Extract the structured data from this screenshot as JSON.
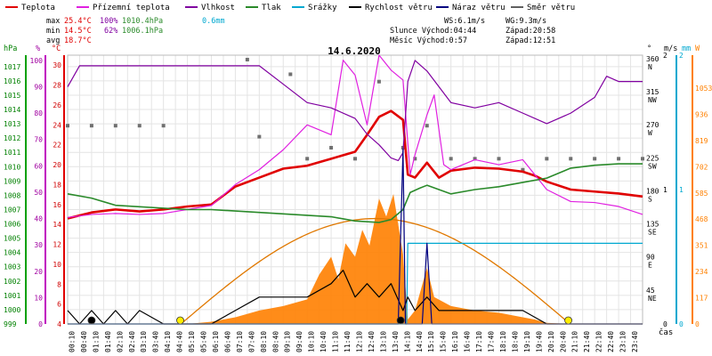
{
  "chart_data": {
    "type": "line",
    "title": "14.6.2020",
    "xlabel": "čas",
    "x_ticks": [
      "00:10",
      "00:40",
      "01:10",
      "01:40",
      "02:10",
      "02:40",
      "03:10",
      "03:40",
      "04:10",
      "04:40",
      "05:10",
      "05:40",
      "06:10",
      "06:40",
      "07:10",
      "07:40",
      "08:10",
      "08:40",
      "09:10",
      "09:40",
      "10:10",
      "10:40",
      "11:10",
      "11:40",
      "12:10",
      "12:40",
      "13:10",
      "13:40",
      "14:10",
      "14:40",
      "15:10",
      "15:40",
      "16:10",
      "16:40",
      "17:10",
      "17:40",
      "18:10",
      "18:40",
      "19:10",
      "19:40",
      "20:10",
      "20:40",
      "21:10",
      "21:40",
      "22:10",
      "22:40",
      "23:10",
      "23:40"
    ],
    "axes": {
      "hpa": {
        "label": "hPa",
        "color": "#008000",
        "ticks": [
          999,
          1000,
          1001,
          1002,
          1003,
          1004,
          1005,
          1006,
          1007,
          1008,
          1009,
          1010,
          1011,
          1012,
          1013,
          1014,
          1015,
          1016,
          1017
        ]
      },
      "pct": {
        "label": "%",
        "color": "#a000a0",
        "ticks": [
          0,
          10,
          20,
          30,
          40,
          50,
          60,
          70,
          80,
          90,
          100
        ]
      },
      "degc": {
        "label": "°C",
        "color": "#d00000",
        "ticks": [
          4,
          6,
          8,
          10,
          12,
          14,
          16,
          18,
          20,
          22,
          24,
          26,
          28,
          30
        ]
      },
      "deg": {
        "label": "°",
        "ticks": [
          {
            "v": "360",
            "d": "N"
          },
          {
            "v": "315",
            "d": "NW"
          },
          {
            "v": "270",
            "d": "W"
          },
          {
            "v": "225",
            "d": "SW"
          },
          {
            "v": "180",
            "d": "S"
          },
          {
            "v": "135",
            "d": "SE"
          },
          {
            "v": "90",
            "d": "E"
          },
          {
            "v": "45",
            "d": "NE"
          }
        ]
      },
      "ms": {
        "label": "m/s",
        "ticks": [
          0,
          1,
          2
        ]
      },
      "mm": {
        "label": "mm",
        "color": "#00a0c0",
        "ticks": [
          0,
          1,
          2
        ]
      },
      "w": {
        "label": "W",
        "color": "#ff8000",
        "ticks": [
          0,
          117,
          234,
          351,
          468,
          585,
          702,
          819,
          936,
          1053
        ]
      }
    },
    "legend": [
      {
        "name": "Teplota",
        "color": "#e00000"
      },
      {
        "name": "Přízemní teplota",
        "color": "#e020e0"
      },
      {
        "name": "Vlhkost",
        "color": "#8000a0"
      },
      {
        "name": "Tlak",
        "color": "#2a8a2a"
      },
      {
        "name": "Srážky",
        "color": "#00a8d0"
      },
      {
        "name": "Rychlost větru",
        "color": "#000000"
      },
      {
        "name": "Náraz větru",
        "color": "#000080"
      },
      {
        "name": "Směr větru",
        "color": "#606060"
      }
    ],
    "stats": {
      "max": {
        "label": "max",
        "temp": "25.4°C",
        "hum": "100%",
        "press": "1010.4hPa",
        "rain": "0.6mm"
      },
      "min": {
        "label": "min",
        "temp": "14.5°C",
        "hum": "62%",
        "press": "1006.1hPa"
      },
      "avg": {
        "label": "avg",
        "temp": "18.7°C"
      },
      "ws": "WS:6.1m/s",
      "wg": "WG:9.3m/s",
      "sun": "Slunce Východ:04:44",
      "sun_set": "Západ:20:58",
      "moon": "Měsíc  Východ:0:57",
      "moon_set": "Západ:12:51"
    },
    "series": [
      {
        "name": "Teplota",
        "axis": "degc",
        "color": "#e00000",
        "points": [
          [
            0,
            14.6
          ],
          [
            1,
            15.2
          ],
          [
            2,
            15.5
          ],
          [
            3,
            15.3
          ],
          [
            4,
            15.5
          ],
          [
            5,
            15.8
          ],
          [
            6,
            16.0
          ],
          [
            7,
            17.8
          ],
          [
            8,
            18.7
          ],
          [
            9,
            19.6
          ],
          [
            10,
            19.9
          ],
          [
            11,
            20.6
          ],
          [
            12,
            21.3
          ],
          [
            12.5,
            23.0
          ],
          [
            13,
            24.8
          ],
          [
            13.5,
            25.4
          ],
          [
            14,
            24.5
          ],
          [
            14.2,
            19.0
          ],
          [
            14.5,
            18.7
          ],
          [
            15,
            20.2
          ],
          [
            15.5,
            18.7
          ],
          [
            16,
            19.4
          ],
          [
            17,
            19.7
          ],
          [
            18,
            19.6
          ],
          [
            19,
            19.3
          ],
          [
            19.5,
            18.9
          ],
          [
            20,
            18.3
          ],
          [
            21,
            17.5
          ],
          [
            22,
            17.3
          ],
          [
            23,
            17.1
          ],
          [
            24,
            16.8
          ]
        ]
      },
      {
        "name": "Přízemní teplota",
        "axis": "degc",
        "color": "#e020e0",
        "points": [
          [
            0,
            14.7
          ],
          [
            1,
            15.0
          ],
          [
            2,
            15.1
          ],
          [
            3,
            15.0
          ],
          [
            4,
            15.1
          ],
          [
            5,
            15.5
          ],
          [
            6,
            15.9
          ],
          [
            7,
            18.0
          ],
          [
            8,
            19.5
          ],
          [
            9,
            21.5
          ],
          [
            10,
            24.0
          ],
          [
            11,
            23.0
          ],
          [
            11.5,
            30.5
          ],
          [
            12,
            29.0
          ],
          [
            12.5,
            24.0
          ],
          [
            13,
            31.0
          ],
          [
            13.5,
            29.5
          ],
          [
            14,
            28.5
          ],
          [
            14.3,
            19.0
          ],
          [
            14.5,
            21.0
          ],
          [
            15,
            25.0
          ],
          [
            15.3,
            27.0
          ],
          [
            15.7,
            20.0
          ],
          [
            16,
            19.5
          ],
          [
            17,
            20.5
          ],
          [
            18,
            20.0
          ],
          [
            19,
            20.5
          ],
          [
            19.5,
            19.0
          ],
          [
            20,
            17.5
          ],
          [
            21,
            16.3
          ],
          [
            22,
            16.2
          ],
          [
            23,
            15.8
          ],
          [
            24,
            15.0
          ]
        ]
      },
      {
        "name": "Vlhkost",
        "axis": "pct",
        "color": "#8000a0",
        "points": [
          [
            0,
            90
          ],
          [
            0.5,
            98
          ],
          [
            1,
            98
          ],
          [
            2,
            98
          ],
          [
            3,
            98
          ],
          [
            4,
            98
          ],
          [
            5,
            98
          ],
          [
            6,
            98
          ],
          [
            7,
            98
          ],
          [
            8,
            98
          ],
          [
            9,
            91
          ],
          [
            10,
            84
          ],
          [
            11,
            82
          ],
          [
            12,
            78
          ],
          [
            12.5,
            72
          ],
          [
            13,
            68
          ],
          [
            13.5,
            63
          ],
          [
            13.8,
            62
          ],
          [
            14,
            65
          ],
          [
            14.2,
            92
          ],
          [
            14.5,
            100
          ],
          [
            15,
            96
          ],
          [
            16,
            84
          ],
          [
            17,
            82
          ],
          [
            18,
            84
          ],
          [
            19,
            80
          ],
          [
            20,
            76
          ],
          [
            21,
            80
          ],
          [
            22,
            86
          ],
          [
            22.5,
            94
          ],
          [
            23,
            92
          ],
          [
            24,
            92
          ]
        ]
      },
      {
        "name": "Tlak",
        "axis": "hpa",
        "color": "#2a8a2a",
        "points": [
          [
            0,
            1008.1
          ],
          [
            1,
            1007.8
          ],
          [
            2,
            1007.3
          ],
          [
            3,
            1007.2
          ],
          [
            4,
            1007.1
          ],
          [
            5,
            1007.0
          ],
          [
            6,
            1007.0
          ],
          [
            7,
            1006.9
          ],
          [
            8,
            1006.8
          ],
          [
            9,
            1006.7
          ],
          [
            10,
            1006.6
          ],
          [
            11,
            1006.5
          ],
          [
            12,
            1006.2
          ],
          [
            13,
            1006.1
          ],
          [
            13.5,
            1006.3
          ],
          [
            14,
            1007.0
          ],
          [
            14.3,
            1008.2
          ],
          [
            14.7,
            1008.5
          ],
          [
            15,
            1008.7
          ],
          [
            15.5,
            1008.4
          ],
          [
            16,
            1008.1
          ],
          [
            17,
            1008.4
          ],
          [
            18,
            1008.6
          ],
          [
            19,
            1008.9
          ],
          [
            20,
            1009.2
          ],
          [
            21,
            1009.9
          ],
          [
            22,
            1010.1
          ],
          [
            23,
            1010.2
          ],
          [
            24,
            1010.2
          ]
        ]
      },
      {
        "name": "Srážky",
        "axis": "mm",
        "color": "#00a8d0",
        "points": [
          [
            0,
            0
          ],
          [
            14.0,
            0
          ],
          [
            14.15,
            0.0
          ],
          [
            14.2,
            0.6
          ],
          [
            24,
            0.6
          ]
        ]
      },
      {
        "name": "Rychlost větru",
        "axis": "ms",
        "color": "#000000",
        "points": [
          [
            0,
            0.1
          ],
          [
            0.5,
            0.0
          ],
          [
            1,
            0.1
          ],
          [
            1.5,
            0.0
          ],
          [
            2,
            0.1
          ],
          [
            2.5,
            0.0
          ],
          [
            3,
            0.1
          ],
          [
            4,
            0.0
          ],
          [
            5,
            0.0
          ],
          [
            6,
            0.0
          ],
          [
            7,
            0.1
          ],
          [
            8,
            0.2
          ],
          [
            9,
            0.2
          ],
          [
            10,
            0.2
          ],
          [
            11,
            0.3
          ],
          [
            11.5,
            0.4
          ],
          [
            12,
            0.2
          ],
          [
            12.5,
            0.3
          ],
          [
            13,
            0.2
          ],
          [
            13.5,
            0.3
          ],
          [
            14,
            0.1
          ],
          [
            14.2,
            0.2
          ],
          [
            14.5,
            0.1
          ],
          [
            15,
            0.2
          ],
          [
            15.5,
            0.1
          ],
          [
            16,
            0.1
          ],
          [
            17,
            0.1
          ],
          [
            18,
            0.1
          ],
          [
            19,
            0.1
          ],
          [
            20,
            0.0
          ],
          [
            24,
            0.0
          ]
        ]
      },
      {
        "name": "Náraz větru",
        "axis": "ms",
        "color": "#000080",
        "points": [
          [
            0,
            0
          ],
          [
            13.8,
            0.0
          ],
          [
            14.0,
            1.3
          ],
          [
            14.1,
            0.0
          ],
          [
            14.8,
            0.0
          ],
          [
            15.0,
            0.6
          ],
          [
            15.2,
            0.0
          ],
          [
            24,
            0.0
          ]
        ]
      }
    ],
    "solar": {
      "axis": "w",
      "color": "#ff8000",
      "points": [
        [
          0,
          0
        ],
        [
          4.0,
          0
        ],
        [
          5.0,
          0
        ],
        [
          6,
          10
        ],
        [
          7,
          30
        ],
        [
          8,
          60
        ],
        [
          9,
          80
        ],
        [
          10,
          110
        ],
        [
          10.5,
          220
        ],
        [
          11,
          300
        ],
        [
          11.3,
          200
        ],
        [
          11.6,
          360
        ],
        [
          12,
          300
        ],
        [
          12.3,
          420
        ],
        [
          12.6,
          350
        ],
        [
          13,
          560
        ],
        [
          13.3,
          480
        ],
        [
          13.6,
          580
        ],
        [
          14,
          310
        ],
        [
          14.2,
          20
        ],
        [
          14.5,
          60
        ],
        [
          15,
          250
        ],
        [
          15.3,
          120
        ],
        [
          16,
          80
        ],
        [
          17,
          60
        ],
        [
          18,
          50
        ],
        [
          19,
          30
        ],
        [
          19.5,
          20
        ],
        [
          20,
          5
        ],
        [
          21,
          0
        ],
        [
          24,
          0
        ]
      ]
    },
    "sun_curve": {
      "rise": 4.73,
      "set": 20.97,
      "peak": 12.85
    },
    "wind_dir_samples": [
      [
        0,
        270
      ],
      [
        1,
        270
      ],
      [
        2,
        270
      ],
      [
        3,
        270
      ],
      [
        4,
        270
      ],
      [
        7.5,
        360
      ],
      [
        8,
        255
      ],
      [
        9.3,
        340
      ],
      [
        10,
        225
      ],
      [
        11,
        240
      ],
      [
        12,
        225
      ],
      [
        13,
        330
      ],
      [
        14,
        240
      ],
      [
        14.5,
        225
      ],
      [
        15,
        270
      ],
      [
        16,
        225
      ],
      [
        17,
        225
      ],
      [
        18,
        225
      ],
      [
        19,
        210
      ],
      [
        20,
        225
      ],
      [
        21,
        225
      ],
      [
        22,
        225
      ],
      [
        23,
        225
      ],
      [
        24,
        225
      ]
    ],
    "markers": [
      {
        "x": 1.0,
        "kind": "black"
      },
      {
        "x": 4.7,
        "kind": "yellow"
      },
      {
        "x": 13.9,
        "kind": "black"
      },
      {
        "x": 20.9,
        "kind": "yellow"
      }
    ]
  }
}
